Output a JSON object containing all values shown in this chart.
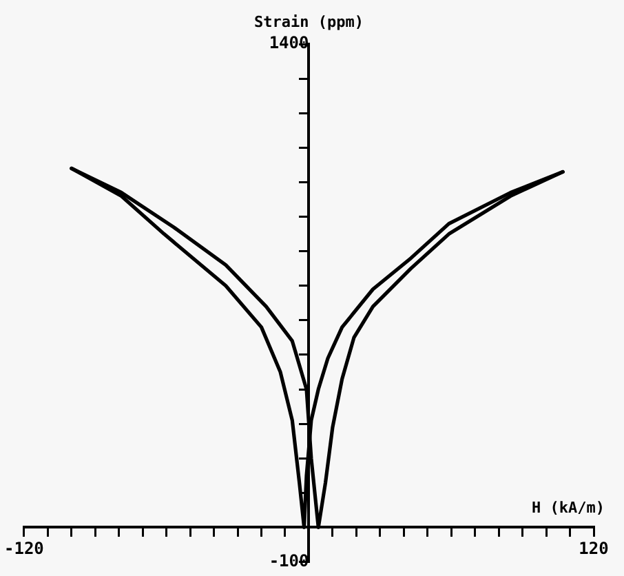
{
  "chart_data": {
    "type": "line",
    "xlabel": "H (kA/m)",
    "ylabel": "Strain (ppm)",
    "xlim": [
      -120,
      120
    ],
    "ylim": [
      -100,
      1400
    ],
    "xticks": [
      {
        "value": -120,
        "label": "-120"
      },
      {
        "value": -110,
        "label": null
      },
      {
        "value": -100,
        "label": null
      },
      {
        "value": -90,
        "label": null
      },
      {
        "value": -80,
        "label": null
      },
      {
        "value": -70,
        "label": null
      },
      {
        "value": -60,
        "label": null
      },
      {
        "value": -50,
        "label": null
      },
      {
        "value": -40,
        "label": null
      },
      {
        "value": -30,
        "label": null
      },
      {
        "value": -20,
        "label": null
      },
      {
        "value": -10,
        "label": null
      },
      {
        "value": 0,
        "label": null
      },
      {
        "value": 10,
        "label": null
      },
      {
        "value": 20,
        "label": null
      },
      {
        "value": 30,
        "label": null
      },
      {
        "value": 40,
        "label": null
      },
      {
        "value": 50,
        "label": null
      },
      {
        "value": 60,
        "label": null
      },
      {
        "value": 70,
        "label": null
      },
      {
        "value": 80,
        "label": null
      },
      {
        "value": 90,
        "label": null
      },
      {
        "value": 100,
        "label": null
      },
      {
        "value": 110,
        "label": null
      },
      {
        "value": 120,
        "label": "120"
      }
    ],
    "yticks": [
      {
        "value": -100,
        "label": "-100"
      },
      {
        "value": 0,
        "label": null
      },
      {
        "value": 100,
        "label": null
      },
      {
        "value": 200,
        "label": null
      },
      {
        "value": 300,
        "label": null
      },
      {
        "value": 400,
        "label": null
      },
      {
        "value": 500,
        "label": null
      },
      {
        "value": 600,
        "label": null
      },
      {
        "value": 700,
        "label": null
      },
      {
        "value": 800,
        "label": null
      },
      {
        "value": 900,
        "label": null
      },
      {
        "value": 1000,
        "label": null
      },
      {
        "value": 1100,
        "label": null
      },
      {
        "value": 1200,
        "label": null
      },
      {
        "value": 1300,
        "label": null
      },
      {
        "value": 1400,
        "label": "1400"
      }
    ],
    "grid": false,
    "legend": false,
    "marker": "none",
    "line_style": "solid",
    "series": [
      {
        "color": "#000000",
        "x": [
          107,
          85,
          59,
          43,
          27,
          14,
          8,
          4,
          1,
          -1,
          -2,
          -4,
          -7,
          -12,
          -20,
          -35,
          -61,
          -79,
          -100
        ],
        "values": [
          1030,
          970,
          880,
          780,
          690,
          580,
          490,
          400,
          310,
          150,
          0,
          130,
          310,
          450,
          580,
          700,
          850,
          960,
          1040
        ]
      },
      {
        "color": "#000000",
        "x": [
          -100,
          -79,
          -57,
          -35,
          -18,
          -7,
          -1,
          1,
          4,
          7,
          10,
          14,
          19,
          27,
          43,
          59,
          85,
          107
        ],
        "values": [
          1040,
          970,
          870,
          760,
          640,
          540,
          400,
          200,
          0,
          130,
          290,
          430,
          550,
          640,
          750,
          850,
          960,
          1030
        ]
      }
    ]
  }
}
